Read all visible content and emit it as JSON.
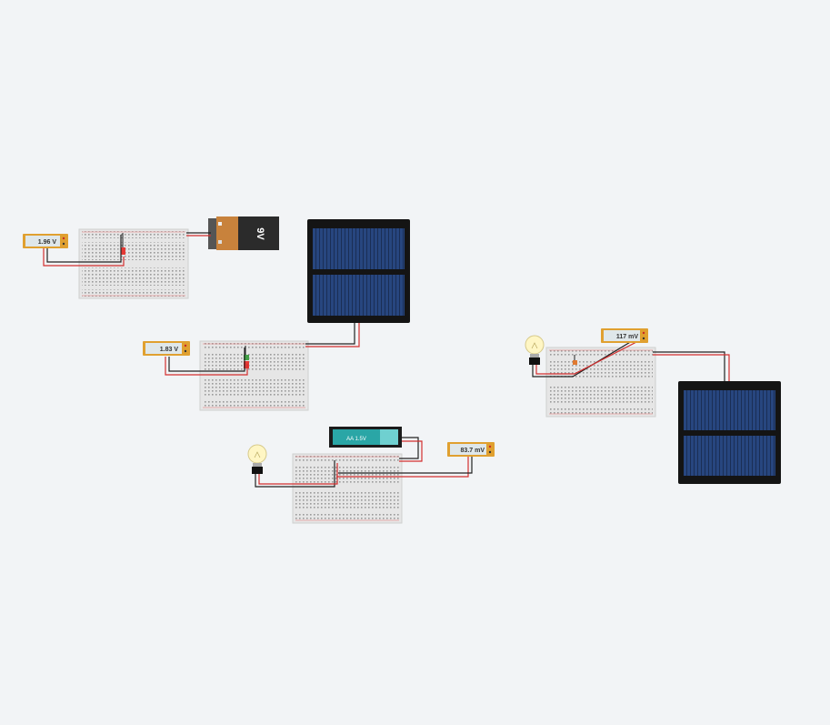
{
  "workspace": {
    "circuits": [
      {
        "id": "led-9v",
        "meter_reading": "1.96 V",
        "source": "9V battery",
        "load": "LED"
      },
      {
        "id": "led-solar",
        "meter_reading": "1.83 V",
        "source": "solar panel",
        "load": "LED"
      },
      {
        "id": "bulb-aa",
        "meter_reading": "83.7 mV",
        "source": "AA 1.5V battery",
        "load": "light bulb"
      },
      {
        "id": "bulb-solar",
        "meter_reading": "117 mV",
        "source": "solar panel",
        "load": "light bulb"
      }
    ],
    "battery_9v_label": "9V",
    "battery_aa_label": "AA 1.5V"
  },
  "colors": {
    "background": "#f2f4f6",
    "wire_red": "#d32f2f",
    "wire_black": "#222222",
    "meter_body": "#e0a030",
    "solar_cell": "#1f3a6e",
    "battery_9v_body": "#c8823c",
    "battery_aa_body": "#2aa6a6"
  }
}
